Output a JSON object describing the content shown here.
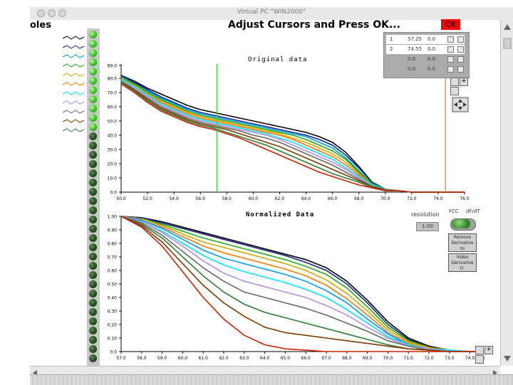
{
  "window": {
    "title": "Virtual PC \"WIN2000\""
  },
  "panel": {
    "left_title_fragment": "oles",
    "header": "Adjust Cursors and Press OK...",
    "ok_label": "OK"
  },
  "cursors": [
    {
      "index": "1",
      "x": "57.25",
      "y": "0.0"
    },
    {
      "index": "2",
      "x": "74.55",
      "y": "0.0"
    },
    {
      "index": "",
      "x": "0.0",
      "y": "0.0"
    },
    {
      "index": "",
      "x": "0.0",
      "y": "0.0"
    }
  ],
  "controls": {
    "resolution_label": "resolution",
    "resolution_value": "1.00",
    "toggle_left": "FCC",
    "toggle_right": "dF/dT",
    "btn1": [
      "Remove",
      "Derivative",
      "to"
    ],
    "btn2": [
      "Video",
      "Derivative",
      "Fi."
    ]
  },
  "leds": {
    "on_count": 11,
    "total": 36
  },
  "legend_colors": [
    "#000000",
    "#1a237e",
    "#0099ff",
    "#22aa22",
    "#ccaa00",
    "#ff7700",
    "#00e5ff",
    "#b58ed6",
    "#666666",
    "#7a3a00",
    "#2e7d32"
  ],
  "colors": {
    "ok_red": "#ff0000",
    "led_panel": "#c8c8c8",
    "cursor1": "#3cc83c",
    "cursor2": "#e0782a"
  },
  "chart_data": [
    {
      "type": "line",
      "title": "Original data",
      "xlim": [
        50.0,
        76.0
      ],
      "ylim": [
        0.0,
        90.0
      ],
      "xticks": [
        "50.0",
        "52.0",
        "54.0",
        "56.0",
        "58.0",
        "60.0",
        "62.0",
        "64.0",
        "66.0",
        "68.0",
        "70.0",
        "72.0",
        "74.0",
        "76.0"
      ],
      "xtick_values": [
        50,
        52,
        54,
        56,
        58,
        60,
        62,
        64,
        66,
        68,
        70,
        72,
        74,
        76
      ],
      "yticks": [
        "0.0",
        "10.0",
        "20.0",
        "30.0",
        "40.0",
        "50.0",
        "60.0",
        "70.0",
        "80.0",
        "89.0"
      ],
      "ytick_values": [
        0,
        10,
        20,
        30,
        40,
        50,
        60,
        70,
        80,
        89
      ],
      "cursors_x": [
        57.25,
        74.55
      ],
      "x": [
        50,
        51,
        52,
        53,
        54,
        55,
        56,
        57,
        58,
        59,
        60,
        61,
        62,
        63,
        64,
        65,
        66,
        67,
        68,
        69,
        70,
        71,
        72,
        73,
        74,
        75,
        76
      ],
      "series": [
        {
          "color": "#000000",
          "values": [
            82,
            78,
            73,
            69,
            65,
            61,
            58,
            56,
            54,
            52,
            50,
            48,
            46,
            44,
            42,
            39,
            35,
            28,
            18,
            7,
            2,
            1,
            0,
            0,
            0,
            0,
            0
          ]
        },
        {
          "color": "#1a237e",
          "values": [
            81,
            77,
            72,
            67,
            63,
            59,
            56,
            54,
            52,
            50,
            48,
            46,
            44,
            42,
            40,
            37,
            33,
            26,
            17,
            7,
            2,
            1,
            0,
            0,
            0,
            0,
            0
          ]
        },
        {
          "color": "#0099ff",
          "values": [
            81,
            76,
            71,
            66,
            62,
            58,
            55,
            53,
            51,
            49,
            47,
            45,
            43,
            41,
            39,
            35,
            31,
            24,
            15,
            6,
            2,
            1,
            0,
            0,
            0,
            0,
            0
          ]
        },
        {
          "color": "#22aa22",
          "values": [
            80,
            76,
            70,
            65,
            61,
            57,
            54,
            52,
            50,
            48,
            46,
            44,
            42,
            40,
            37,
            33,
            29,
            23,
            14,
            6,
            2,
            1,
            0,
            0,
            0,
            0,
            0
          ]
        },
        {
          "color": "#ccaa00",
          "values": [
            80,
            75,
            69,
            64,
            60,
            56,
            53,
            51,
            49,
            47,
            45,
            43,
            41,
            38,
            35,
            31,
            27,
            21,
            13,
            5,
            2,
            1,
            0,
            0,
            0,
            0,
            0
          ]
        },
        {
          "color": "#ff7700",
          "values": [
            79,
            74,
            68,
            63,
            59,
            55,
            52,
            50,
            48,
            46,
            44,
            42,
            40,
            37,
            33,
            29,
            25,
            19,
            12,
            5,
            2,
            1,
            0,
            0,
            0,
            0,
            0
          ]
        },
        {
          "color": "#00e5ff",
          "values": [
            79,
            74,
            68,
            62,
            58,
            54,
            51,
            49,
            47,
            45,
            43,
            41,
            38,
            35,
            31,
            27,
            23,
            17,
            11,
            5,
            2,
            1,
            0,
            0,
            0,
            0,
            0
          ]
        },
        {
          "color": "#b58ed6",
          "values": [
            78,
            73,
            67,
            61,
            57,
            53,
            50,
            48,
            46,
            44,
            42,
            40,
            37,
            33,
            29,
            25,
            21,
            16,
            10,
            4,
            2,
            1,
            0,
            0,
            0,
            0,
            0
          ]
        },
        {
          "color": "#666666",
          "values": [
            78,
            72,
            66,
            60,
            56,
            52,
            49,
            47,
            45,
            43,
            40,
            38,
            35,
            31,
            27,
            23,
            19,
            14,
            9,
            4,
            2,
            1,
            0,
            0,
            0,
            0,
            0
          ]
        },
        {
          "color": "#7a3a00",
          "values": [
            77,
            72,
            65,
            59,
            55,
            51,
            48,
            46,
            44,
            41,
            38,
            35,
            32,
            28,
            24,
            20,
            16,
            12,
            8,
            4,
            1,
            1,
            0,
            0,
            0,
            0,
            0
          ]
        },
        {
          "color": "#2e7d32",
          "values": [
            77,
            71,
            64,
            58,
            54,
            50,
            47,
            45,
            42,
            39,
            36,
            33,
            29,
            25,
            21,
            17,
            13,
            10,
            7,
            3,
            1,
            1,
            0,
            0,
            0,
            0,
            0
          ]
        },
        {
          "color": "#cc2200",
          "values": [
            76,
            70,
            63,
            57,
            53,
            49,
            46,
            44,
            41,
            38,
            34,
            30,
            26,
            22,
            18,
            14,
            11,
            8,
            5,
            3,
            1,
            1,
            0,
            0,
            0,
            0,
            0
          ]
        }
      ]
    },
    {
      "type": "line",
      "title": "Normalized Data",
      "xlim": [
        57.0,
        74.5
      ],
      "ylim": [
        0.0,
        1.0
      ],
      "xticks": [
        "57.0",
        "58.0",
        "59.0",
        "60.0",
        "61.0",
        "62.0",
        "63.0",
        "64.0",
        "65.0",
        "66.0",
        "67.0",
        "68.0",
        "69.0",
        "70.0",
        "71.0",
        "72.0",
        "73.0",
        "74.0",
        "74.5"
      ],
      "xtick_values": [
        57,
        58,
        59,
        60,
        61,
        62,
        63,
        64,
        65,
        66,
        67,
        68,
        69,
        70,
        71,
        72,
        73,
        74,
        74.5
      ],
      "yticks": [
        "0.0",
        "0.10",
        "0.20",
        "0.30",
        "0.40",
        "0.50",
        "0.60",
        "0.70",
        "0.80",
        "0.90",
        "1.00"
      ],
      "ytick_values": [
        0,
        0.1,
        0.2,
        0.3,
        0.4,
        0.5,
        0.6,
        0.7,
        0.8,
        0.9,
        1.0
      ],
      "x": [
        57,
        58,
        59,
        60,
        61,
        62,
        63,
        64,
        65,
        66,
        67,
        68,
        69,
        70,
        71,
        72,
        73,
        74,
        74.5
      ],
      "series": [
        {
          "color": "#000000",
          "values": [
            1.0,
            0.99,
            0.96,
            0.92,
            0.88,
            0.84,
            0.8,
            0.76,
            0.72,
            0.68,
            0.62,
            0.52,
            0.38,
            0.22,
            0.1,
            0.04,
            0.01,
            0.0,
            0.0
          ]
        },
        {
          "color": "#1a237e",
          "values": [
            1.0,
            0.99,
            0.95,
            0.91,
            0.87,
            0.83,
            0.79,
            0.75,
            0.71,
            0.66,
            0.6,
            0.5,
            0.36,
            0.2,
            0.09,
            0.03,
            0.01,
            0.0,
            0.0
          ]
        },
        {
          "color": "#22aa22",
          "values": [
            1.0,
            0.98,
            0.94,
            0.89,
            0.84,
            0.8,
            0.76,
            0.72,
            0.68,
            0.63,
            0.57,
            0.47,
            0.33,
            0.18,
            0.08,
            0.03,
            0.01,
            0.0,
            0.0
          ]
        },
        {
          "color": "#ccaa00",
          "values": [
            1.0,
            0.98,
            0.93,
            0.87,
            0.81,
            0.77,
            0.73,
            0.69,
            0.65,
            0.6,
            0.53,
            0.43,
            0.3,
            0.16,
            0.07,
            0.03,
            0.01,
            0.0,
            0.0
          ]
        },
        {
          "color": "#ff7700",
          "values": [
            1.0,
            0.97,
            0.92,
            0.85,
            0.78,
            0.73,
            0.69,
            0.65,
            0.61,
            0.56,
            0.49,
            0.39,
            0.27,
            0.14,
            0.06,
            0.02,
            0.01,
            0.0,
            0.0
          ]
        },
        {
          "color": "#0099ff",
          "values": [
            1.0,
            0.97,
            0.91,
            0.83,
            0.75,
            0.69,
            0.65,
            0.61,
            0.57,
            0.52,
            0.45,
            0.36,
            0.24,
            0.13,
            0.05,
            0.02,
            0.01,
            0.0,
            0.0
          ]
        },
        {
          "color": "#00e5ff",
          "values": [
            1.0,
            0.96,
            0.89,
            0.8,
            0.71,
            0.64,
            0.59,
            0.55,
            0.51,
            0.46,
            0.4,
            0.31,
            0.21,
            0.11,
            0.05,
            0.02,
            0.01,
            0.0,
            0.0
          ]
        },
        {
          "color": "#b58ed6",
          "values": [
            1.0,
            0.96,
            0.88,
            0.78,
            0.67,
            0.58,
            0.52,
            0.48,
            0.44,
            0.4,
            0.34,
            0.27,
            0.18,
            0.1,
            0.04,
            0.02,
            0.0,
            0.0,
            0.0
          ]
        },
        {
          "color": "#666666",
          "values": [
            1.0,
            0.95,
            0.86,
            0.74,
            0.62,
            0.52,
            0.44,
            0.4,
            0.36,
            0.32,
            0.27,
            0.21,
            0.15,
            0.08,
            0.04,
            0.01,
            0.0,
            0.0,
            0.0
          ]
        },
        {
          "color": "#2e7d32",
          "values": [
            1.0,
            0.94,
            0.84,
            0.7,
            0.56,
            0.44,
            0.35,
            0.29,
            0.25,
            0.21,
            0.17,
            0.13,
            0.09,
            0.05,
            0.02,
            0.01,
            0.0,
            0.0,
            0.0
          ]
        },
        {
          "color": "#7a3a00",
          "values": [
            1.0,
            0.93,
            0.81,
            0.65,
            0.49,
            0.36,
            0.26,
            0.18,
            0.14,
            0.12,
            0.1,
            0.08,
            0.06,
            0.04,
            0.02,
            0.01,
            0.0,
            0.0,
            0.0
          ]
        },
        {
          "color": "#cc2200",
          "values": [
            1.0,
            0.92,
            0.78,
            0.59,
            0.4,
            0.24,
            0.12,
            0.05,
            0.02,
            0.01,
            0.0,
            0.0,
            0.0,
            0.0,
            0.0,
            0.0,
            0.0,
            0.0,
            0.0
          ]
        }
      ]
    }
  ]
}
